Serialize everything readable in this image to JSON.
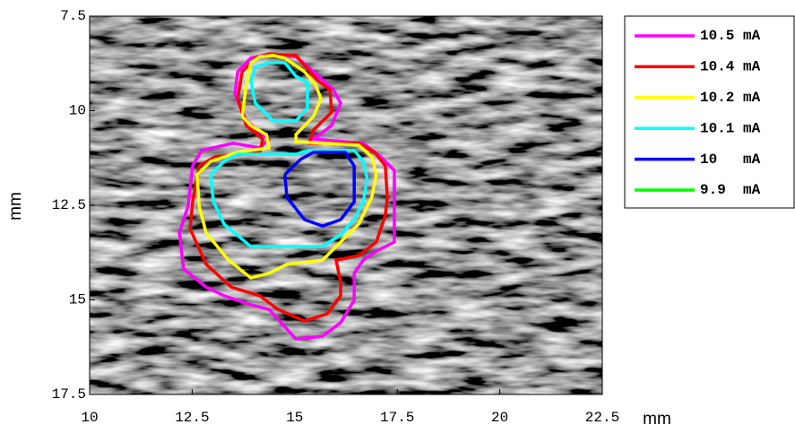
{
  "chart_data": {
    "type": "contour",
    "x_label": "mm",
    "y_label": "mm",
    "xlim": [
      10,
      22.5
    ],
    "xticks": [
      10,
      12.5,
      15,
      17.5,
      20,
      22.5
    ],
    "ylim": [
      17.5,
      7.5
    ],
    "yticks": [
      7.5,
      10,
      12.5,
      15,
      17.5
    ],
    "legend": "outside-right",
    "series": [
      {
        "name": "10.5 mA",
        "color": "#ff00ff",
        "x": [
          13.54,
          13.61,
          13.93,
          14.37,
          15.03,
          15.46,
          15.94,
          16.12,
          15.9,
          15.46,
          16.67,
          17.1,
          17.43,
          17.43,
          16.99,
          16.67,
          16.45,
          16.45,
          16.12,
          15.68,
          15.03,
          14.37,
          13.93,
          13.28,
          12.84,
          12.29,
          12.19,
          12.4,
          12.51,
          12.73,
          13.5,
          14.15,
          14.37,
          13.82,
          13.54
        ],
        "y": [
          9.56,
          8.97,
          8.61,
          8.5,
          8.57,
          8.97,
          9.44,
          9.8,
          10.39,
          10.75,
          10.86,
          11.22,
          11.58,
          13.47,
          13.71,
          13.95,
          14.3,
          15.01,
          15.6,
          15.96,
          16.03,
          15.25,
          15.13,
          14.89,
          14.66,
          14.18,
          13.23,
          12.52,
          11.46,
          11.05,
          10.86,
          10.98,
          10.75,
          10.27,
          9.56
        ]
      },
      {
        "name": "10.4 mA",
        "color": "#ff0000",
        "x": [
          13.61,
          13.72,
          14.04,
          14.37,
          15.03,
          15.57,
          15.86,
          15.9,
          15.46,
          15.35,
          16.56,
          16.95,
          17.21,
          17.26,
          17.21,
          16.99,
          16.56,
          16.01,
          16.12,
          16.12,
          15.79,
          15.24,
          14.59,
          14.15,
          13.45,
          12.84,
          12.45,
          12.51,
          12.67,
          13.06,
          14.15,
          14.22,
          13.82,
          13.61
        ],
        "y": [
          9.68,
          8.97,
          8.61,
          8.5,
          8.54,
          9.21,
          9.44,
          10.04,
          10.51,
          10.86,
          10.86,
          11.1,
          11.46,
          12.29,
          12.76,
          13.47,
          13.83,
          13.95,
          14.54,
          14.89,
          15.37,
          15.56,
          15.25,
          14.89,
          14.66,
          14.06,
          13.12,
          12.41,
          11.46,
          11.22,
          11.1,
          10.75,
          10.39,
          9.68
        ]
      },
      {
        "name": "10.2 mA",
        "color": "#ffff00",
        "x": [
          13.72,
          13.82,
          13.93,
          14.15,
          14.48,
          14.76,
          15.24,
          15.51,
          15.64,
          15.46,
          15.03,
          15.03,
          16.56,
          16.88,
          16.99,
          16.88,
          16.56,
          16.23,
          15.68,
          14.81,
          14.37,
          13.93,
          13.39,
          12.84,
          12.67,
          12.62,
          12.95,
          13.61,
          14.37,
          14.31,
          13.93,
          13.72
        ],
        "y": [
          10.15,
          9.32,
          8.73,
          8.57,
          8.54,
          8.61,
          8.97,
          9.32,
          9.68,
          10.15,
          10.63,
          10.82,
          10.91,
          11.22,
          11.69,
          12.29,
          13.0,
          13.35,
          13.95,
          14.06,
          14.3,
          14.42,
          13.95,
          13.23,
          12.52,
          11.69,
          11.34,
          11.1,
          10.98,
          10.63,
          10.39,
          10.15
        ]
      },
      {
        "name": "10.1 mA",
        "color": "#00ffff",
        "x": [
          13.93,
          14.04,
          14.37,
          14.76,
          15.03,
          15.31,
          15.31,
          15.03,
          14.48,
          14.04,
          13.93,
          null,
          12.95,
          13.28,
          13.61,
          15.03,
          15.35,
          16.45,
          16.67,
          16.77,
          16.67,
          16.45,
          16.12,
          15.68,
          13.93,
          13.28,
          13.02,
          12.95
        ],
        "y": [
          9.21,
          8.85,
          8.73,
          8.73,
          9.09,
          9.25,
          9.92,
          10.27,
          10.27,
          9.8,
          9.21,
          null,
          11.69,
          11.34,
          11.15,
          11.15,
          11.05,
          11.05,
          11.34,
          11.81,
          12.41,
          12.88,
          13.28,
          13.59,
          13.59,
          13.0,
          12.41,
          11.69
        ]
      },
      {
        "name": "10   mA",
        "color": "#0000ff",
        "x": [
          14.76,
          15.14,
          15.46,
          16.23,
          16.45,
          16.45,
          16.12,
          15.68,
          15.24,
          14.81,
          14.76
        ],
        "y": [
          11.69,
          11.29,
          11.1,
          11.1,
          11.46,
          12.41,
          12.88,
          13.05,
          12.88,
          12.29,
          11.69
        ]
      },
      {
        "name": "9.9  mA",
        "color": "#00ff00",
        "x": [],
        "y": []
      }
    ]
  }
}
